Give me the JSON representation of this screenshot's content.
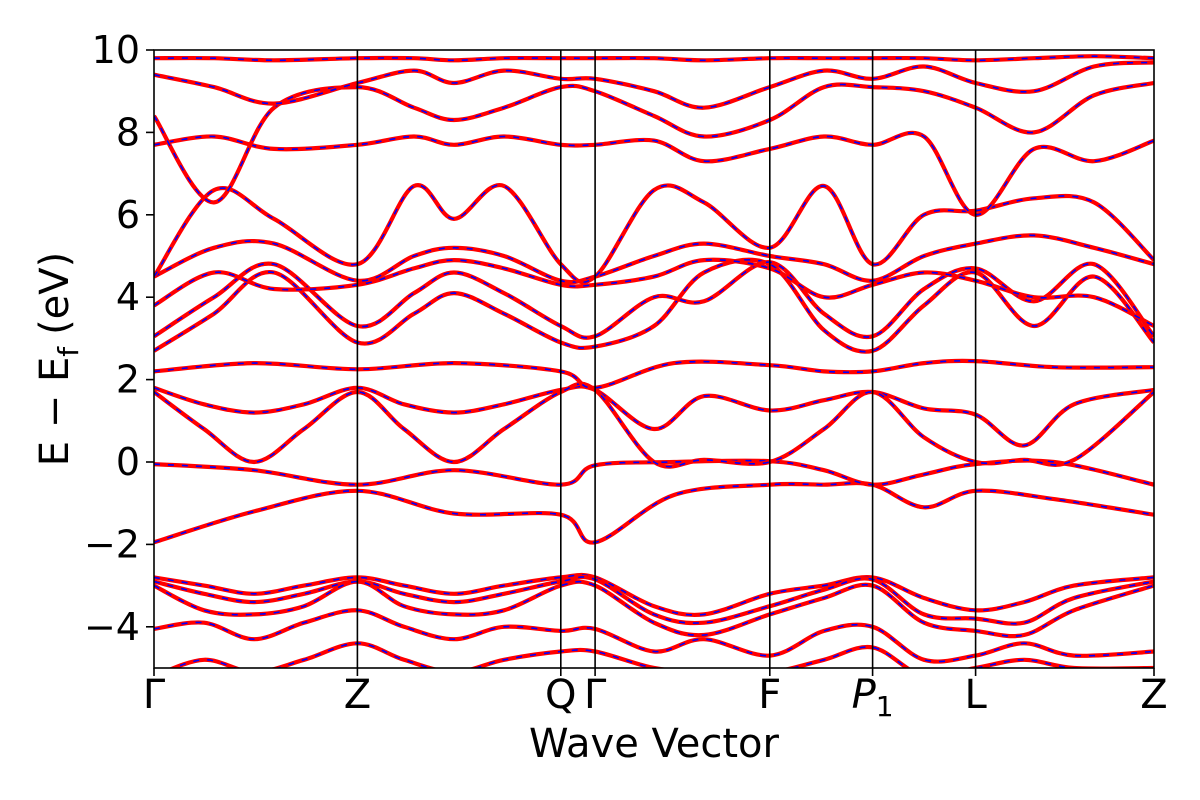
{
  "chart_data": {
    "type": "line",
    "title": "",
    "xlabel": "Wave Vector",
    "ylabel": "E − E",
    "ylabel_sub": "f",
    "ylabel_unit": "(eV)",
    "ylim": [
      -5,
      10
    ],
    "xlim": [
      0,
      1
    ],
    "grid": false,
    "legend": "none",
    "yticks": [
      -4,
      -2,
      0,
      2,
      4,
      6,
      8,
      10
    ],
    "ytick_labels": [
      "−4",
      "−2",
      "0",
      "2",
      "4",
      "6",
      "8",
      "10"
    ],
    "kpoints": [
      {
        "label": "Γ",
        "x": 0.0,
        "italic": false,
        "sub": ""
      },
      {
        "label": "Z",
        "x": 0.2034,
        "italic": false,
        "sub": ""
      },
      {
        "label": "Q",
        "x": 0.4068,
        "italic": false,
        "sub": ""
      },
      {
        "label": "Γ",
        "x": 0.4411,
        "italic": false,
        "sub": ""
      },
      {
        "label": "F",
        "x": 0.6158,
        "italic": false,
        "sub": ""
      },
      {
        "label": "P",
        "x": 0.7186,
        "italic": true,
        "sub": "1"
      },
      {
        "label": "L",
        "x": 0.8216,
        "italic": false,
        "sub": ""
      },
      {
        "label": "Z",
        "x": 1.0,
        "italic": false,
        "sub": ""
      }
    ],
    "colors": {
      "band_primary": "#ff0000",
      "band_secondary": "#0000ff",
      "kpath_line": "#000000"
    },
    "series": [
      {
        "x": [
          0,
          0.1,
          0.2034,
          0.3,
          0.4068,
          0.4411,
          0.52,
          0.6158,
          0.67,
          0.7186,
          0.77,
          0.8216,
          0.9,
          1.0
        ],
        "y": [
          -1.95,
          -1.2,
          -0.7,
          -1.25,
          -1.28,
          -1.95,
          -0.8,
          -0.55,
          -0.55,
          -0.55,
          -1.1,
          -0.7,
          -0.9,
          -1.28
        ]
      },
      {
        "x": [
          0,
          0.1,
          0.2034,
          0.3,
          0.4068,
          0.4411,
          0.52,
          0.6158,
          0.67,
          0.7186,
          0.77,
          0.8216,
          0.9,
          1.0
        ],
        "y": [
          -0.05,
          -0.2,
          -0.55,
          -0.2,
          -0.55,
          -0.08,
          0.0,
          0.02,
          -0.2,
          -0.55,
          -0.3,
          -0.05,
          0.0,
          -0.55
        ]
      },
      {
        "x": [
          0,
          0.05,
          0.1,
          0.15,
          0.2034,
          0.25,
          0.3,
          0.35,
          0.4068,
          0.4411,
          0.5,
          0.55,
          0.6158,
          0.67,
          0.7186,
          0.77,
          0.8216,
          0.87,
          0.92,
          1.0
        ],
        "y": [
          1.8,
          1.4,
          1.2,
          1.4,
          1.8,
          1.4,
          1.2,
          1.4,
          1.75,
          1.75,
          0.8,
          1.6,
          1.25,
          1.5,
          1.7,
          1.3,
          1.15,
          0.4,
          1.4,
          1.75
        ]
      },
      {
        "x": [
          0,
          0.05,
          0.1,
          0.15,
          0.2034,
          0.25,
          0.3,
          0.35,
          0.4068,
          0.4411,
          0.5,
          0.55,
          0.6158,
          0.67,
          0.7186,
          0.77,
          0.8216,
          0.87,
          0.92,
          1.0
        ],
        "y": [
          1.7,
          0.8,
          0.0,
          0.8,
          1.7,
          0.8,
          0.0,
          0.8,
          1.7,
          1.75,
          0.0,
          0.05,
          0.0,
          0.8,
          1.7,
          0.6,
          0.0,
          0.05,
          0.05,
          1.7
        ]
      },
      {
        "x": [
          0,
          0.1,
          0.2034,
          0.3,
          0.4068,
          0.4411,
          0.52,
          0.6158,
          0.67,
          0.7186,
          0.77,
          0.8216,
          0.9,
          1.0
        ],
        "y": [
          2.2,
          2.4,
          2.25,
          2.4,
          2.2,
          1.8,
          2.4,
          2.35,
          2.2,
          2.2,
          2.4,
          2.45,
          2.3,
          2.3
        ]
      },
      {
        "x": [
          0,
          0.06,
          0.12,
          0.2034,
          0.26,
          0.3,
          0.35,
          0.4068,
          0.4411,
          0.5,
          0.55,
          0.6158,
          0.67,
          0.7186,
          0.77,
          0.8216,
          0.88,
          0.94,
          1.0
        ],
        "y": [
          2.7,
          3.6,
          4.6,
          2.9,
          3.6,
          4.1,
          3.6,
          2.9,
          2.8,
          3.3,
          4.6,
          4.8,
          3.2,
          2.7,
          3.8,
          4.6,
          3.3,
          4.5,
          2.9
        ]
      },
      {
        "x": [
          0,
          0.06,
          0.12,
          0.2034,
          0.26,
          0.3,
          0.35,
          0.4068,
          0.4411,
          0.5,
          0.55,
          0.6158,
          0.67,
          0.7186,
          0.77,
          0.8216,
          0.88,
          0.94,
          1.0
        ],
        "y": [
          3.05,
          4.0,
          4.8,
          3.3,
          4.1,
          4.6,
          4.1,
          3.3,
          3.05,
          4.0,
          3.9,
          4.85,
          3.6,
          3.05,
          4.2,
          4.7,
          3.9,
          4.8,
          3.05
        ]
      },
      {
        "x": [
          0,
          0.06,
          0.12,
          0.2034,
          0.26,
          0.3,
          0.35,
          0.4068,
          0.4411,
          0.5,
          0.55,
          0.6158,
          0.67,
          0.7186,
          0.77,
          0.8216,
          0.88,
          0.94,
          1.0
        ],
        "y": [
          3.8,
          4.6,
          4.2,
          4.3,
          4.7,
          4.9,
          4.7,
          4.3,
          4.3,
          4.5,
          4.9,
          4.7,
          4.0,
          4.3,
          4.6,
          4.4,
          4.0,
          4.0,
          3.3
        ]
      },
      {
        "x": [
          0,
          0.06,
          0.12,
          0.2034,
          0.26,
          0.3,
          0.35,
          0.4068,
          0.4411,
          0.5,
          0.55,
          0.6158,
          0.67,
          0.7186,
          0.77,
          0.8216,
          0.88,
          0.94,
          1.0
        ],
        "y": [
          4.5,
          5.2,
          5.3,
          4.4,
          5.0,
          5.2,
          5.0,
          4.4,
          4.5,
          5.0,
          5.3,
          5.0,
          4.8,
          4.4,
          5.0,
          5.3,
          5.5,
          5.2,
          4.8
        ]
      },
      {
        "x": [
          0,
          0.06,
          0.12,
          0.2034,
          0.26,
          0.3,
          0.35,
          0.4068,
          0.4411,
          0.5,
          0.55,
          0.6158,
          0.67,
          0.7186,
          0.77,
          0.8216,
          0.88,
          0.94,
          1.0
        ],
        "y": [
          4.5,
          6.6,
          5.9,
          4.8,
          6.7,
          5.9,
          6.7,
          4.8,
          4.5,
          6.6,
          6.3,
          5.2,
          6.7,
          4.8,
          6.0,
          6.1,
          6.4,
          6.3,
          4.9
        ]
      },
      {
        "x": [
          0,
          0.06,
          0.12,
          0.2034,
          0.26,
          0.3,
          0.35,
          0.4068,
          0.4411,
          0.5,
          0.55,
          0.6158,
          0.67,
          0.7186,
          0.77,
          0.8216,
          0.88,
          0.94,
          1.0
        ],
        "y": [
          7.7,
          7.9,
          7.6,
          7.7,
          7.9,
          7.7,
          7.9,
          7.7,
          7.7,
          7.8,
          7.3,
          7.6,
          7.9,
          7.7,
          7.9,
          6.0,
          7.6,
          7.3,
          7.8
        ]
      },
      {
        "x": [
          0,
          0.06,
          0.12,
          0.2034,
          0.26,
          0.3,
          0.35,
          0.4068,
          0.4411,
          0.5,
          0.55,
          0.6158,
          0.67,
          0.7186,
          0.77,
          0.8216,
          0.88,
          0.94,
          1.0
        ],
        "y": [
          8.4,
          6.3,
          8.6,
          9.1,
          8.6,
          8.3,
          8.6,
          9.1,
          9.0,
          8.4,
          7.9,
          8.3,
          9.1,
          9.1,
          9.0,
          8.6,
          8.0,
          8.9,
          9.2
        ]
      },
      {
        "x": [
          0,
          0.06,
          0.12,
          0.2034,
          0.26,
          0.3,
          0.35,
          0.4068,
          0.4411,
          0.5,
          0.55,
          0.6158,
          0.67,
          0.7186,
          0.77,
          0.8216,
          0.88,
          0.94,
          1.0
        ],
        "y": [
          9.4,
          9.1,
          8.7,
          9.2,
          9.5,
          9.2,
          9.5,
          9.3,
          9.3,
          9.0,
          8.6,
          9.1,
          9.5,
          9.3,
          9.6,
          9.2,
          9.0,
          9.6,
          9.7
        ]
      },
      {
        "x": [
          0,
          0.06,
          0.12,
          0.2034,
          0.26,
          0.3,
          0.35,
          0.4068,
          0.4411,
          0.5,
          0.55,
          0.6158,
          0.67,
          0.7186,
          0.77,
          0.8216,
          0.88,
          0.94,
          1.0
        ],
        "y": [
          9.8,
          9.8,
          9.75,
          9.8,
          9.8,
          9.75,
          9.8,
          9.8,
          9.8,
          9.8,
          9.75,
          9.8,
          9.8,
          9.8,
          9.8,
          9.75,
          9.8,
          9.85,
          9.8
        ]
      },
      {
        "x": [
          0,
          0.05,
          0.1,
          0.15,
          0.2034,
          0.25,
          0.3,
          0.35,
          0.4068,
          0.4411,
          0.5,
          0.55,
          0.6158,
          0.67,
          0.7186,
          0.77,
          0.8216,
          0.87,
          0.92,
          1.0
        ],
        "y": [
          -2.8,
          -3.0,
          -3.2,
          -3.0,
          -2.8,
          -3.0,
          -3.2,
          -3.0,
          -2.8,
          -2.8,
          -3.5,
          -3.7,
          -3.2,
          -3.0,
          -2.8,
          -3.3,
          -3.6,
          -3.4,
          -3.0,
          -2.8
        ]
      },
      {
        "x": [
          0,
          0.05,
          0.1,
          0.15,
          0.2034,
          0.25,
          0.3,
          0.35,
          0.4068,
          0.4411,
          0.5,
          0.55,
          0.6158,
          0.67,
          0.7186,
          0.77,
          0.8216,
          0.87,
          0.92,
          1.0
        ],
        "y": [
          -2.9,
          -3.2,
          -3.4,
          -3.2,
          -2.9,
          -3.2,
          -3.4,
          -3.2,
          -2.9,
          -2.85,
          -3.7,
          -3.9,
          -3.5,
          -3.1,
          -2.85,
          -3.7,
          -3.8,
          -3.9,
          -3.3,
          -2.9
        ]
      },
      {
        "x": [
          0,
          0.05,
          0.1,
          0.15,
          0.2034,
          0.25,
          0.3,
          0.35,
          0.4068,
          0.4411,
          0.5,
          0.55,
          0.6158,
          0.67,
          0.7186,
          0.77,
          0.8216,
          0.87,
          0.92,
          1.0
        ],
        "y": [
          -3.0,
          -3.6,
          -3.7,
          -3.5,
          -2.9,
          -3.5,
          -3.7,
          -3.6,
          -3.0,
          -3.0,
          -3.9,
          -4.2,
          -3.7,
          -3.3,
          -3.0,
          -3.9,
          -4.1,
          -4.2,
          -3.6,
          -3.0
        ]
      },
      {
        "x": [
          0,
          0.05,
          0.1,
          0.15,
          0.2034,
          0.25,
          0.3,
          0.35,
          0.4068,
          0.4411,
          0.5,
          0.55,
          0.6158,
          0.67,
          0.7186,
          0.77,
          0.8216,
          0.87,
          0.92,
          1.0
        ],
        "y": [
          -4.05,
          -3.9,
          -4.3,
          -3.9,
          -3.6,
          -4.0,
          -4.3,
          -4.0,
          -4.1,
          -4.05,
          -4.6,
          -4.3,
          -4.7,
          -4.1,
          -4.0,
          -4.8,
          -4.7,
          -4.4,
          -4.7,
          -4.6
        ]
      },
      {
        "x": [
          0,
          0.05,
          0.1,
          0.15,
          0.2034,
          0.25,
          0.3,
          0.35,
          0.4068,
          0.4411,
          0.5,
          0.55,
          0.6158,
          0.67,
          0.7186,
          0.77,
          0.8216,
          0.87,
          0.92,
          1.0
        ],
        "y": [
          -5.2,
          -4.8,
          -5.1,
          -4.8,
          -4.4,
          -4.8,
          -5.1,
          -4.8,
          -4.6,
          -4.6,
          -5.0,
          -5.1,
          -5.1,
          -4.8,
          -4.5,
          -5.2,
          -5.0,
          -4.8,
          -5.0,
          -5.0
        ]
      }
    ]
  }
}
